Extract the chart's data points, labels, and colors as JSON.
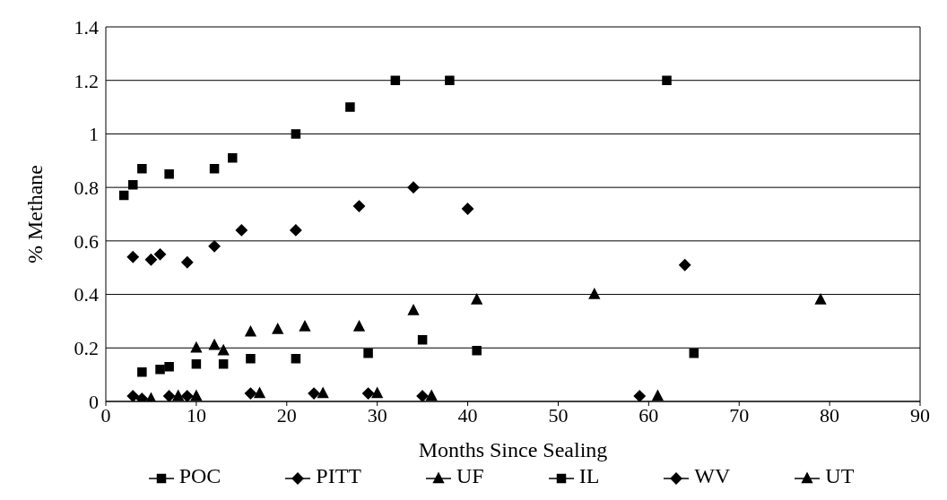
{
  "chart_data": {
    "type": "scatter",
    "xlabel": "Months Since Sealing",
    "ylabel": "% Methane",
    "xlim": [
      0,
      90
    ],
    "xticks": [
      0,
      10,
      20,
      30,
      40,
      50,
      60,
      70,
      80,
      90
    ],
    "ylim": [
      0,
      1.4
    ],
    "yticks": [
      0,
      0.2,
      0.4,
      0.6,
      0.8,
      1,
      1.2,
      1.4
    ],
    "grid": "y",
    "legend": "bottom",
    "series": [
      {
        "name": "POC",
        "color": "#000000",
        "marker": "square",
        "x": [
          2,
          3,
          4,
          7,
          12,
          14,
          21,
          27,
          32,
          38,
          62
        ],
        "values": [
          0.77,
          0.81,
          0.87,
          0.85,
          0.87,
          0.91,
          1.0,
          1.1,
          1.2,
          1.2,
          1.2
        ]
      },
      {
        "name": "PITT",
        "color": "#000000",
        "marker": "diamond",
        "x": [
          3,
          5,
          6,
          9,
          12,
          15,
          21,
          28,
          34,
          40,
          64
        ],
        "values": [
          0.54,
          0.53,
          0.55,
          0.52,
          0.58,
          0.64,
          0.64,
          0.73,
          0.8,
          0.72,
          0.51
        ]
      },
      {
        "name": "UF",
        "color": "#000000",
        "marker": "triangle",
        "x": [
          10,
          12,
          13,
          19,
          22,
          28,
          34,
          41,
          54,
          79
        ],
        "values": [
          0.2,
          0.21,
          0.19,
          0.27,
          0.28,
          0.28,
          0.34,
          0.38,
          0.4,
          0.38
        ]
      },
      {
        "name": "IL",
        "color": "#000000",
        "marker": "square",
        "x": [
          4,
          6,
          7,
          10,
          13,
          16,
          21,
          29,
          35,
          41,
          65
        ],
        "values": [
          0.11,
          0.12,
          0.13,
          0.14,
          0.14,
          0.16,
          0.16,
          0.18,
          0.23,
          0.19,
          0.18
        ]
      },
      {
        "name": "WV",
        "color": "#000000",
        "marker": "diamond",
        "x": [
          3,
          4,
          7,
          9,
          16,
          23,
          29,
          35,
          59
        ],
        "values": [
          0.02,
          0.01,
          0.02,
          0.02,
          0.03,
          0.03,
          0.03,
          0.02,
          0.02
        ]
      },
      {
        "name": "UT",
        "color": "#000000",
        "marker": "triangle",
        "x": [
          5,
          8,
          10,
          16,
          17,
          24,
          30,
          36,
          61
        ],
        "values": [
          0.01,
          0.02,
          0.02,
          0.26,
          0.03,
          0.03,
          0.03,
          0.02,
          0.02
        ]
      }
    ]
  }
}
